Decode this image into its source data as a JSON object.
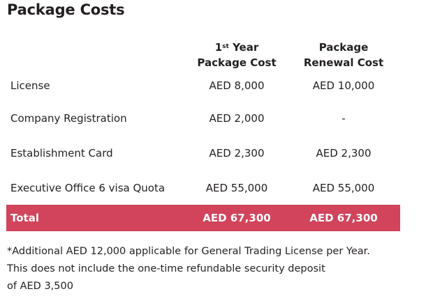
{
  "title": "Package Costs",
  "columns": {
    "first_year": {
      "sup_prefix": "1",
      "sup": "st",
      "line1_suffix": " Year",
      "line2": "Package Cost"
    },
    "renewal": {
      "line1": "Package",
      "line2": "Renewal Cost"
    }
  },
  "rows": [
    {
      "label": "License",
      "first_year": "AED 8,000",
      "renewal": "AED 10,000"
    },
    {
      "label": "Company Registration",
      "first_year": "AED 2,000",
      "renewal": "-"
    },
    {
      "label": "Establishment Card",
      "first_year": "AED 2,300",
      "renewal": "AED 2,300"
    },
    {
      "label": "Executive Office 6 visa Quota",
      "first_year": "AED 55,000",
      "renewal": "AED 55,000"
    }
  ],
  "total": {
    "label": "Total",
    "first_year": "AED 67,300",
    "renewal": "AED 67,300"
  },
  "footnote": [
    "*Additional AED 12,000 applicable for General Trading License per Year.",
    "This does not include the one-time refundable security deposit",
    "of AED 3,500"
  ],
  "colors": {
    "total_row_bg": "#d2435c",
    "text": "#231f20"
  }
}
